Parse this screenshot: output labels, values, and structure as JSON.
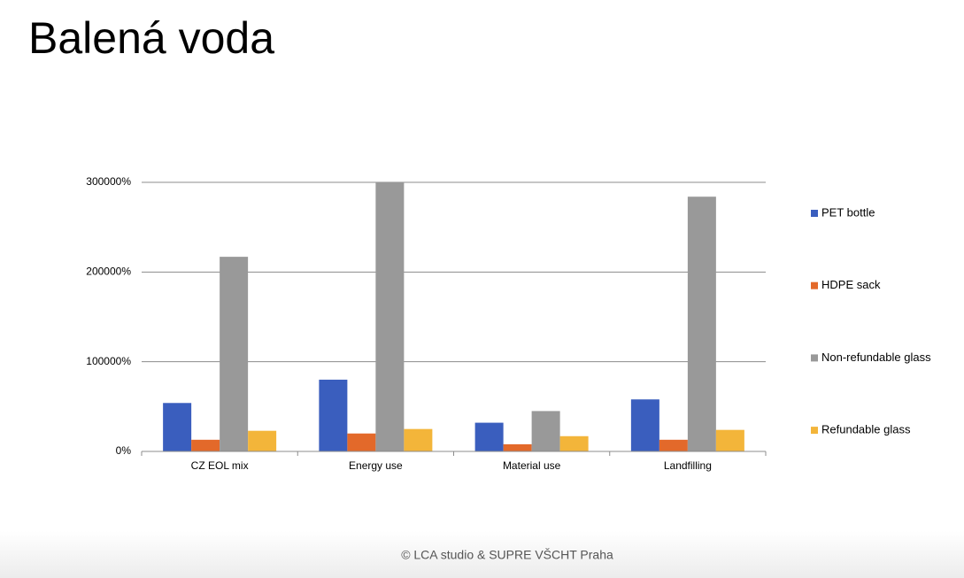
{
  "slide_title": "Balená voda",
  "footer": "©  LCA studio &  SUPRE VŠCHT Praha",
  "chart_data": {
    "type": "bar",
    "categories": [
      "CZ EOL mix",
      "Energy use",
      "Material use",
      "Landfilling"
    ],
    "series": [
      {
        "name": "PET bottle",
        "color": "#3a5ebe",
        "values": [
          54000,
          80000,
          32000,
          58000
        ]
      },
      {
        "name": "HDPE sack",
        "color": "#e3692a",
        "values": [
          13000,
          20000,
          8000,
          13000
        ]
      },
      {
        "name": "Non-refundable glass",
        "color": "#999999",
        "values": [
          217000,
          300000,
          45000,
          284000
        ]
      },
      {
        "name": "Refundable glass",
        "color": "#f3b53a",
        "values": [
          23000,
          25000,
          17000,
          24000
        ]
      }
    ],
    "ylim": [
      0,
      300000
    ],
    "yticks": [
      {
        "value": 0,
        "label": "0%"
      },
      {
        "value": 100000,
        "label": "100000%"
      },
      {
        "value": 200000,
        "label": "200000%"
      },
      {
        "value": 300000,
        "label": "300000%"
      }
    ],
    "grid": true,
    "legend": "right"
  }
}
